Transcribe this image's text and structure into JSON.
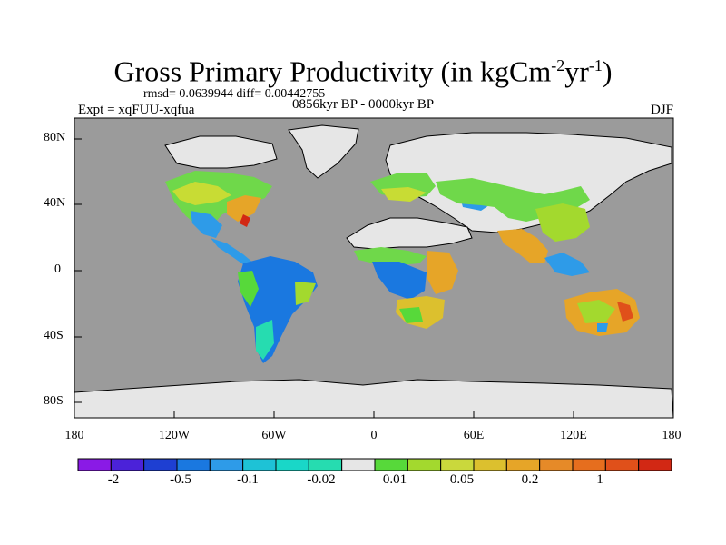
{
  "title": {
    "main": "Gross Primary Productivity (in kgCm",
    "sup1": "-2",
    "mid": "yr",
    "sup2": "-1",
    "end": ")"
  },
  "stats_line": "rmsd= 0.0639944 diff= 0.00442755",
  "experiment_label": "Expt = xqFUU-xqfua",
  "period_label": "0856kyr BP - 0000kyr BP",
  "season_label": "DJF",
  "latitude_labels": [
    "80N",
    "40N",
    "0",
    "40S",
    "80S"
  ],
  "longitude_labels": [
    "180",
    "120W",
    "60W",
    "0",
    "60E",
    "120E",
    "180"
  ],
  "colorbar": {
    "colors": [
      "#8a1ae6",
      "#4b22d9",
      "#1e3fd2",
      "#1a78e0",
      "#2e9be8",
      "#1ec2d6",
      "#19d7c8",
      "#26dcb0",
      "#e6e6e6",
      "#57d93a",
      "#a3d92e",
      "#cad83c",
      "#dcc02e",
      "#e6a528",
      "#e68a28",
      "#e66e1e",
      "#e0501a",
      "#d22814"
    ],
    "labels": [
      "-2",
      "-0.5",
      "-0.1",
      "-0.02",
      "0.01",
      "0.05",
      "0.2",
      "1"
    ]
  },
  "colors": {
    "ocean": "#9b9b9b",
    "neutral_land": "#e6e6e6",
    "coastline": "#000000"
  }
}
